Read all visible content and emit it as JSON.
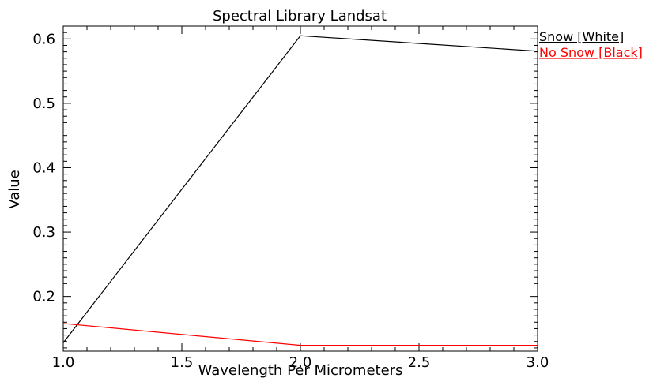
{
  "chart_data": {
    "type": "line",
    "title": "Spectral Library Landsat",
    "xlabel": "Wavelength Per Micrometers",
    "ylabel": "Value",
    "xlim": [
      1.0,
      3.0
    ],
    "ylim": [
      0.115,
      0.62
    ],
    "x_ticks": [
      1.0,
      1.5,
      2.0,
      2.5,
      3.0
    ],
    "x_tick_labels": [
      "1.0",
      "1.5",
      "2.0",
      "2.5",
      "3.0"
    ],
    "y_ticks": [
      0.2,
      0.3,
      0.4,
      0.5,
      0.6
    ],
    "y_tick_labels": [
      "0.2",
      "0.3",
      "0.4",
      "0.5",
      "0.6"
    ],
    "grid": false,
    "legend_position": "top-right-outside",
    "series": [
      {
        "name": "Snow [White]",
        "color": "#000000",
        "x": [
          1.0,
          2.0,
          3.0
        ],
        "y": [
          0.128,
          0.605,
          0.581
        ]
      },
      {
        "name": "No Snow [Black]",
        "color": "#ff0000",
        "x": [
          1.0,
          2.0,
          3.0
        ],
        "y": [
          0.158,
          0.124,
          0.124
        ]
      }
    ]
  }
}
